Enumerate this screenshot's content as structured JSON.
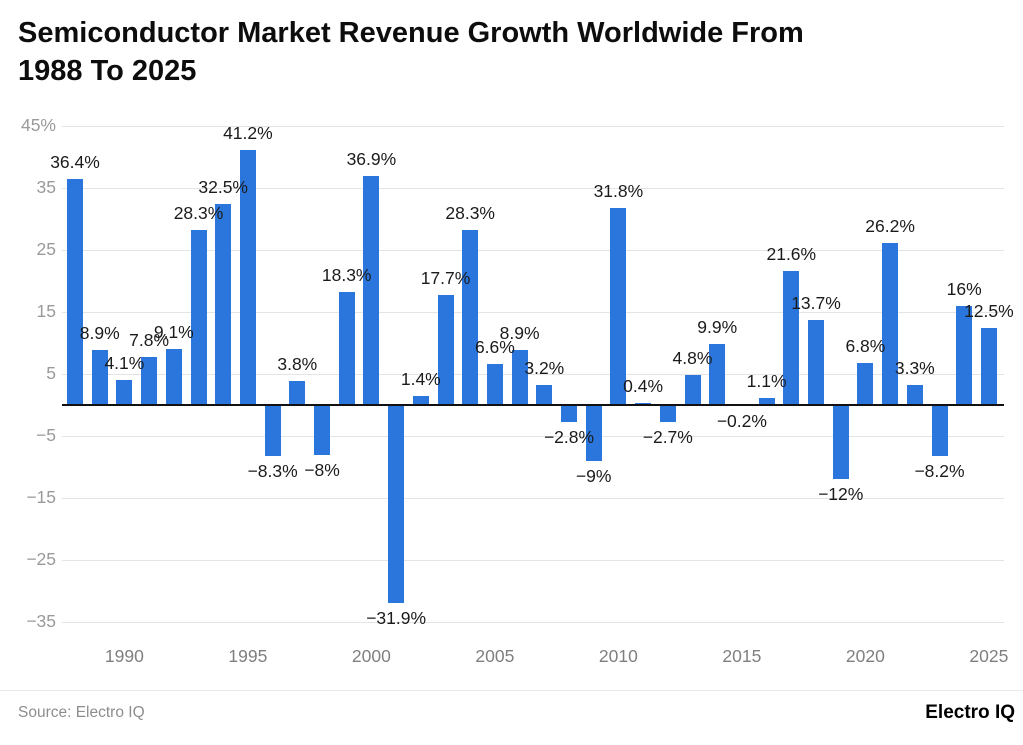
{
  "title_lines": [
    "Semiconductor Market Revenue Growth Worldwide From",
    "1988 To 2025"
  ],
  "footer": {
    "source": "Source: Electro IQ",
    "brand": "Electro IQ"
  },
  "chart_data": {
    "type": "bar",
    "title": "Semiconductor Market Revenue Growth Worldwide From 1988 To 2025",
    "xlabel": "",
    "ylabel": "",
    "x": [
      1988,
      1989,
      1990,
      1991,
      1992,
      1993,
      1994,
      1995,
      1996,
      1997,
      1998,
      1999,
      2000,
      2001,
      2002,
      2003,
      2004,
      2005,
      2006,
      2007,
      2008,
      2009,
      2010,
      2011,
      2012,
      2013,
      2014,
      2015,
      2016,
      2017,
      2018,
      2019,
      2020,
      2021,
      2022,
      2023,
      2024,
      2025
    ],
    "values": [
      36.4,
      8.9,
      4.1,
      7.8,
      9.1,
      28.3,
      32.5,
      41.2,
      -8.3,
      3.8,
      -8,
      18.3,
      36.9,
      -31.9,
      1.4,
      17.7,
      28.3,
      6.6,
      8.9,
      3.2,
      -2.8,
      -9,
      31.8,
      0.4,
      -2.7,
      4.8,
      9.9,
      -0.2,
      1.1,
      21.6,
      13.7,
      -12,
      6.8,
      26.2,
      3.3,
      -8.2,
      16,
      12.5
    ],
    "labels": [
      "36.4%",
      "8.9%",
      "4.1%",
      "7.8%",
      "9.1%",
      "28.3%",
      "32.5%",
      "41.2%",
      "−8.3%",
      "3.8%",
      "−8%",
      "18.3%",
      "36.9%",
      "−31.9%",
      "1.4%",
      "17.7%",
      "28.3%",
      "6.6%",
      "8.9%",
      "3.2%",
      "−2.8%",
      "−9%",
      "31.8%",
      "0.4%",
      "−2.7%",
      "4.8%",
      "9.9%",
      "−0.2%",
      "1.1%",
      "21.6%",
      "13.7%",
      "−12%",
      "6.8%",
      "26.2%",
      "3.3%",
      "−8.2%",
      "16%",
      "12.5%"
    ],
    "ylim": [
      -35,
      45
    ],
    "yticks": [
      45,
      35,
      25,
      15,
      5,
      -5,
      -15,
      -25,
      -35
    ],
    "ytick_labels": [
      "45%",
      "35",
      "25",
      "15",
      "5",
      "−5",
      "−15",
      "−25",
      "−35"
    ],
    "xticks": [
      1990,
      1995,
      2000,
      2005,
      2010,
      2015,
      2020,
      2025
    ],
    "bar_color": "#2a76dc",
    "grid": "horizontal",
    "legend": "none"
  }
}
